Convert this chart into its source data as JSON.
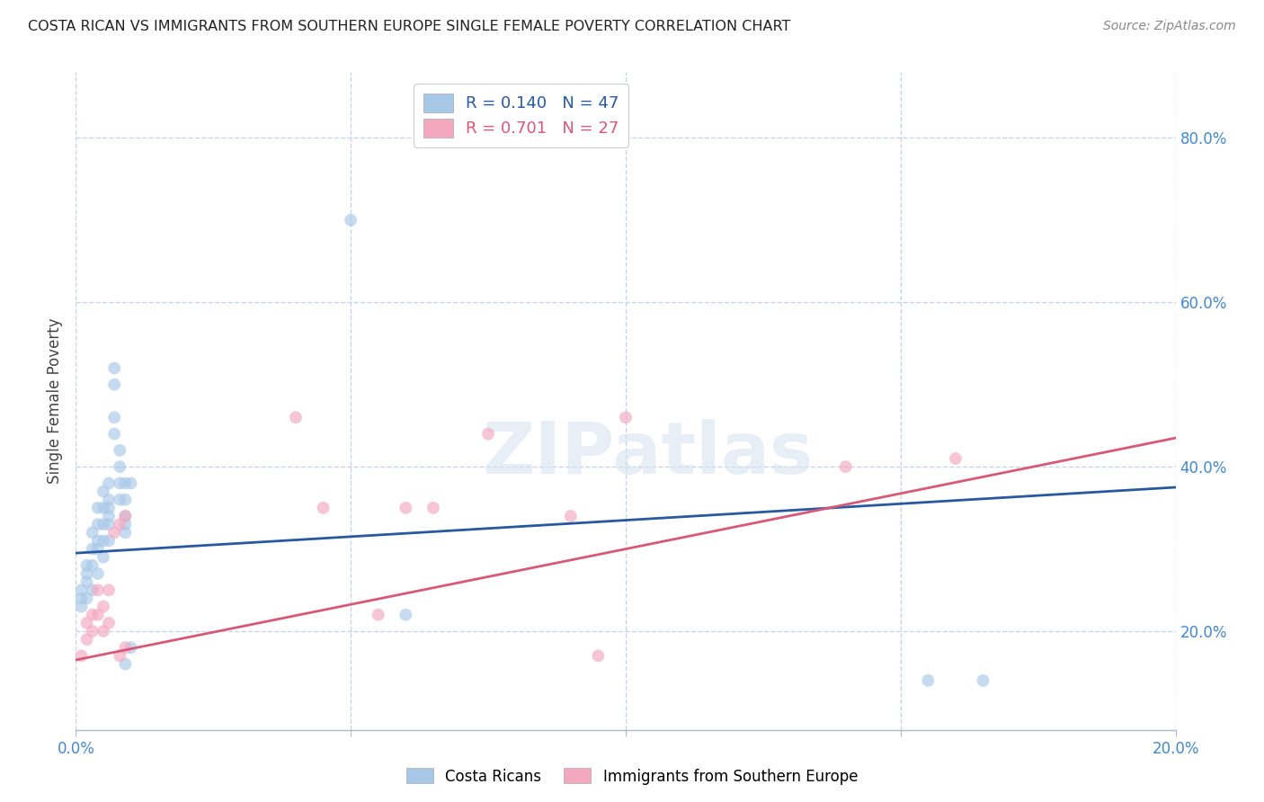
{
  "title": "COSTA RICAN VS IMMIGRANTS FROM SOUTHERN EUROPE SINGLE FEMALE POVERTY CORRELATION CHART",
  "source": "Source: ZipAtlas.com",
  "ylabel": "Single Female Poverty",
  "xmin": 0.0,
  "xmax": 0.2,
  "ymin": 0.08,
  "ymax": 0.88,
  "blue_R": 0.14,
  "blue_N": 47,
  "pink_R": 0.701,
  "pink_N": 27,
  "blue_color": "#a8c8e8",
  "pink_color": "#f4a8c0",
  "blue_line_color": "#2858a0",
  "pink_line_color": "#d85878",
  "blue_x": [
    0.001,
    0.001,
    0.001,
    0.002,
    0.002,
    0.002,
    0.002,
    0.003,
    0.003,
    0.003,
    0.003,
    0.004,
    0.004,
    0.004,
    0.004,
    0.004,
    0.005,
    0.005,
    0.005,
    0.005,
    0.005,
    0.006,
    0.006,
    0.006,
    0.006,
    0.006,
    0.006,
    0.007,
    0.007,
    0.007,
    0.007,
    0.008,
    0.008,
    0.008,
    0.008,
    0.009,
    0.009,
    0.009,
    0.009,
    0.009,
    0.009,
    0.01,
    0.01,
    0.05,
    0.06,
    0.155,
    0.165
  ],
  "blue_y": [
    0.25,
    0.24,
    0.23,
    0.28,
    0.27,
    0.26,
    0.24,
    0.32,
    0.3,
    0.28,
    0.25,
    0.35,
    0.33,
    0.31,
    0.3,
    0.27,
    0.37,
    0.35,
    0.33,
    0.31,
    0.29,
    0.38,
    0.36,
    0.35,
    0.34,
    0.33,
    0.31,
    0.52,
    0.5,
    0.46,
    0.44,
    0.42,
    0.4,
    0.38,
    0.36,
    0.38,
    0.36,
    0.34,
    0.33,
    0.32,
    0.16,
    0.38,
    0.18,
    0.7,
    0.22,
    0.14,
    0.14
  ],
  "pink_x": [
    0.001,
    0.002,
    0.002,
    0.003,
    0.003,
    0.004,
    0.004,
    0.005,
    0.005,
    0.006,
    0.006,
    0.007,
    0.008,
    0.008,
    0.009,
    0.009,
    0.04,
    0.045,
    0.055,
    0.06,
    0.065,
    0.075,
    0.09,
    0.095,
    0.1,
    0.14,
    0.16
  ],
  "pink_y": [
    0.17,
    0.21,
    0.19,
    0.22,
    0.2,
    0.25,
    0.22,
    0.23,
    0.2,
    0.25,
    0.21,
    0.32,
    0.33,
    0.17,
    0.34,
    0.18,
    0.46,
    0.35,
    0.22,
    0.35,
    0.35,
    0.44,
    0.34,
    0.17,
    0.46,
    0.4,
    0.41
  ],
  "blue_line_x": [
    0.0,
    0.2
  ],
  "blue_line_y": [
    0.295,
    0.375
  ],
  "pink_line_x": [
    0.0,
    0.2
  ],
  "pink_line_y": [
    0.165,
    0.435
  ],
  "watermark": "ZIPatlas",
  "background_color": "#ffffff",
  "grid_color": "#c8d4e8",
  "marker_size": 100,
  "marker_alpha": 0.65,
  "line_width": 2.0,
  "right_yticks": [
    0.2,
    0.4,
    0.6,
    0.8
  ],
  "right_yticklabels": [
    "20.0%",
    "40.0%",
    "60.0%",
    "80.0%"
  ],
  "xticks": [
    0.0,
    0.05,
    0.1,
    0.15,
    0.2
  ],
  "xticklabels_show": [
    "0.0%",
    "",
    "",
    "",
    "20.0%"
  ]
}
